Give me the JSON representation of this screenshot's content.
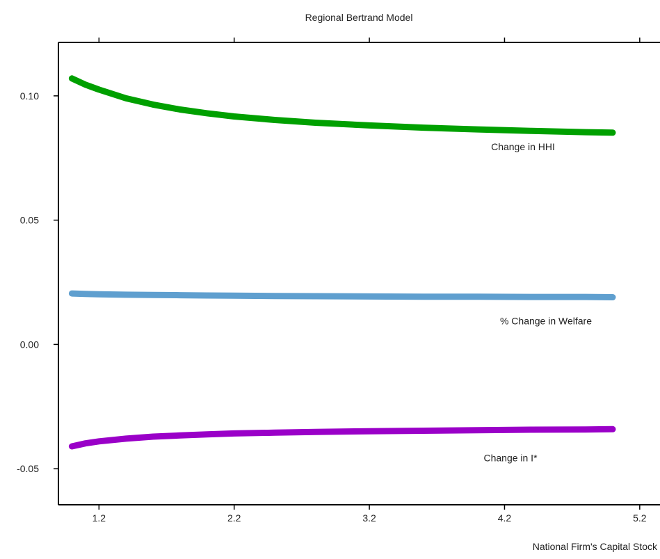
{
  "chart_data": {
    "type": "line",
    "title": "Regional Bertrand Model",
    "xlabel": "National Firm's Capital Stock",
    "ylabel": "",
    "xlim": [
      0.9,
      5.35
    ],
    "ylim": [
      -0.0645,
      0.1215
    ],
    "x_ticks": [
      1.2,
      2.2,
      3.2,
      4.2,
      5.2
    ],
    "x_tick_labels": [
      "1.2",
      "2.2",
      "3.2",
      "4.2",
      "5.2"
    ],
    "y_ticks": [
      -0.05,
      0.0,
      0.05,
      0.1
    ],
    "y_tick_labels": [
      "-0.05",
      "0.00",
      "0.05",
      "0.10"
    ],
    "x_ticks_position": "top-and-bottom",
    "grid": false,
    "legend": "none",
    "x": [
      1.0,
      1.1,
      1.2,
      1.4,
      1.6,
      1.8,
      2.0,
      2.2,
      2.5,
      2.8,
      3.2,
      3.6,
      4.0,
      4.4,
      4.8,
      5.0
    ],
    "series": [
      {
        "name": "Change in HHI",
        "color": "#00a000",
        "label_position": "below line, right end",
        "values": [
          0.107,
          0.1045,
          0.1025,
          0.099,
          0.0965,
          0.0945,
          0.093,
          0.0917,
          0.0903,
          0.0892,
          0.0881,
          0.0872,
          0.0865,
          0.0859,
          0.0854,
          0.0852
        ]
      },
      {
        "name": "% Change in Welfare",
        "color": "#5f9fcf",
        "label_position": "below line, right end",
        "values": [
          0.0205,
          0.0203,
          0.0202,
          0.02,
          0.0199,
          0.0198,
          0.0197,
          0.0196,
          0.0195,
          0.0194,
          0.0193,
          0.0192,
          0.0192,
          0.0191,
          0.0191,
          0.019
        ]
      },
      {
        "name": "Change in I*",
        "color": "#9a00c8",
        "label_position": "below line, right end",
        "values": [
          -0.041,
          -0.0398,
          -0.039,
          -0.0379,
          -0.0371,
          -0.0366,
          -0.0362,
          -0.0358,
          -0.0355,
          -0.0352,
          -0.0349,
          -0.0347,
          -0.0345,
          -0.0343,
          -0.0342,
          -0.0341
        ]
      }
    ]
  }
}
